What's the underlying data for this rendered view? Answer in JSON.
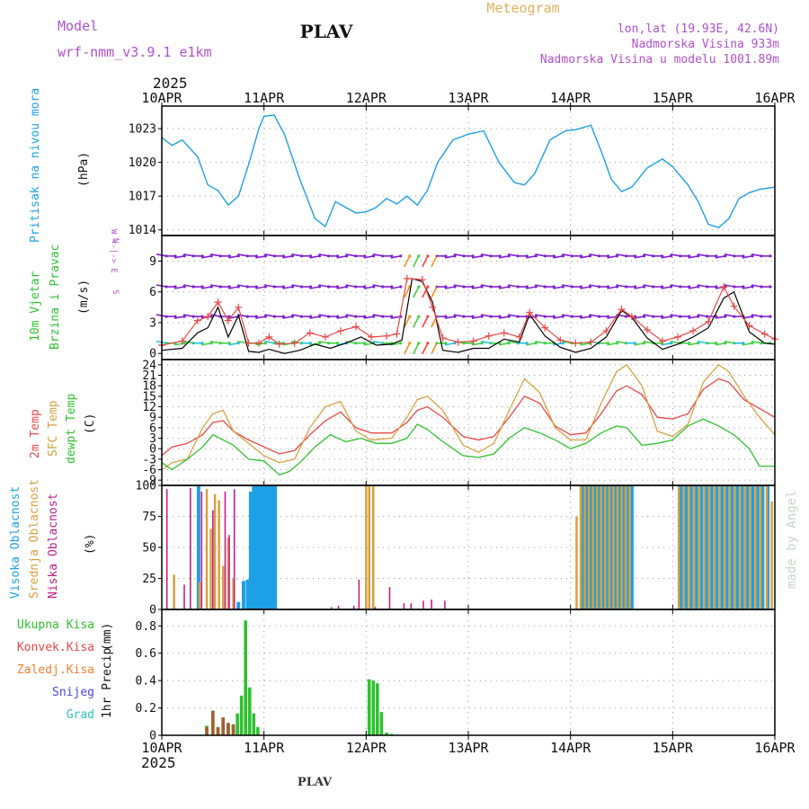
{
  "header": {
    "model_label": "Model",
    "model_name": "wrf-nmm_v3.9.1 e1km",
    "station": "PLAV",
    "product": "Meteogram",
    "coords": "lon,lat (19.93E, 42.6N)",
    "elevation": "Nadmorska Visina 933m",
    "model_elevation": "Nadmorska Visina u modelu 1001.89m",
    "year_top": "2025",
    "year_bottom": "2025",
    "footer_station": "PLAV",
    "watermark": "made by Angel"
  },
  "colors": {
    "pressure": "#1ea0e6",
    "temp2m": "#e84848",
    "sfc_temp": "#d8a040",
    "dewpt": "#30c030",
    "wind_speed": "#e84848",
    "wind_gust": "#000000",
    "cloud_high": "#1ea0e6",
    "cloud_mid": "#d8a040",
    "cloud_low": "#c0208a",
    "precip_total": "#30c030",
    "precip_conv": "#e84848",
    "precip_frz": "#f08030",
    "precip_snow": "#4848e0",
    "precip_graupel": "#30c0c0",
    "barb_purple": "#8020d0",
    "barb_green": "#40d040"
  },
  "chart_data": [
    {
      "type": "line",
      "id": "pressure",
      "ylabel": "Pritisak na nivou mora",
      "unit": "(hPa)",
      "xticks": [
        "10APR",
        "11APR",
        "12APR",
        "13APR",
        "14APR",
        "15APR",
        "16APR"
      ],
      "ylim": [
        1013.5,
        1025
      ],
      "yticks": [
        1014,
        1017,
        1020,
        1023
      ],
      "grid": true,
      "x": [
        0,
        0.1,
        0.2,
        0.35,
        0.45,
        0.55,
        0.65,
        0.75,
        0.85,
        0.95,
        1.0,
        1.1,
        1.2,
        1.35,
        1.5,
        1.6,
        1.7,
        1.8,
        1.9,
        2.0,
        2.1,
        2.2,
        2.3,
        2.4,
        2.5,
        2.6,
        2.7,
        2.85,
        3.0,
        3.15,
        3.3,
        3.45,
        3.55,
        3.65,
        3.8,
        3.95,
        4.05,
        4.2,
        4.3,
        4.4,
        4.5,
        4.6,
        4.75,
        4.9,
        5.0,
        5.15,
        5.25,
        5.35,
        5.45,
        5.55,
        5.65,
        5.75,
        5.85,
        6.0
      ],
      "y": [
        1022.2,
        1021.5,
        1022.0,
        1020.5,
        1018.0,
        1017.5,
        1016.2,
        1017.0,
        1019.8,
        1023.0,
        1024.1,
        1024.2,
        1022.5,
        1018.5,
        1015.0,
        1014.3,
        1016.5,
        1016.0,
        1015.5,
        1015.6,
        1016.0,
        1016.8,
        1016.3,
        1017.0,
        1016.2,
        1017.5,
        1020.0,
        1022.0,
        1022.5,
        1022.8,
        1020.0,
        1018.2,
        1018.0,
        1019.0,
        1022.0,
        1022.8,
        1022.9,
        1023.3,
        1021.0,
        1018.5,
        1017.4,
        1017.8,
        1019.5,
        1020.3,
        1019.6,
        1018.0,
        1016.5,
        1014.5,
        1014.2,
        1015.0,
        1016.8,
        1017.3,
        1017.6,
        1017.8
      ]
    },
    {
      "type": "line",
      "id": "wind",
      "ylabel": "10m Vjetar",
      "ylabel2": "Brzina i Pravac",
      "unit": "(m/s)",
      "legend_axis": [
        "N",
        "W <-|-> E",
        "S"
      ],
      "ylim": [
        -0.6,
        11.5
      ],
      "yticks": [
        0,
        3,
        6,
        9
      ],
      "grid": true,
      "series": [
        {
          "key": "speed",
          "x": [
            0,
            0.2,
            0.35,
            0.45,
            0.55,
            0.65,
            0.75,
            0.85,
            0.95,
            1.05,
            1.15,
            1.3,
            1.45,
            1.6,
            1.75,
            1.9,
            2.05,
            2.2,
            2.3,
            2.4,
            2.55,
            2.65,
            2.75,
            2.9,
            3.05,
            3.2,
            3.35,
            3.5,
            3.6,
            3.75,
            3.9,
            4.05,
            4.2,
            4.35,
            4.5,
            4.6,
            4.75,
            4.9,
            5.05,
            5.2,
            5.35,
            5.5,
            5.6,
            5.75,
            5.9,
            6.0
          ],
          "y": [
            0.8,
            1.2,
            3.2,
            3.6,
            5.0,
            3.2,
            4.5,
            1.0,
            1.0,
            1.6,
            0.9,
            1.0,
            2.0,
            1.6,
            2.2,
            2.6,
            1.6,
            1.7,
            1.9,
            7.3,
            7.2,
            4.5,
            1.5,
            1.1,
            1.2,
            1.7,
            2.0,
            1.6,
            4.0,
            2.5,
            1.3,
            1.0,
            1.1,
            2.2,
            4.3,
            3.6,
            2.3,
            1.2,
            1.6,
            2.2,
            3.1,
            6.5,
            4.6,
            2.7,
            1.9,
            1.4
          ]
        },
        {
          "key": "gust",
          "x": [
            0,
            0.2,
            0.35,
            0.45,
            0.55,
            0.65,
            0.75,
            0.85,
            0.95,
            1.05,
            1.2,
            1.35,
            1.5,
            1.65,
            1.8,
            1.95,
            2.1,
            2.25,
            2.35,
            2.45,
            2.55,
            2.65,
            2.75,
            2.9,
            3.05,
            3.2,
            3.35,
            3.5,
            3.6,
            3.75,
            3.9,
            4.05,
            4.2,
            4.35,
            4.5,
            4.6,
            4.75,
            4.9,
            5.05,
            5.2,
            5.35,
            5.5,
            5.6,
            5.75,
            5.9,
            6.0
          ],
          "y": [
            0.3,
            0.5,
            2.0,
            2.5,
            4.5,
            1.6,
            3.7,
            0.2,
            0.1,
            0.4,
            0.0,
            0.3,
            0.9,
            0.5,
            1.0,
            1.6,
            0.8,
            0.9,
            1.3,
            7.3,
            7.0,
            5.0,
            0.3,
            0.1,
            0.5,
            0.5,
            1.4,
            1.1,
            3.8,
            1.7,
            0.6,
            0.1,
            0.5,
            1.6,
            4.2,
            3.5,
            1.5,
            0.4,
            0.9,
            1.6,
            2.5,
            5.4,
            6.0,
            2.1,
            1.0,
            0.9
          ]
        }
      ]
    },
    {
      "type": "line",
      "id": "temperature",
      "ylabels": [
        "2m Temp",
        "SFC Temp",
        "dewpt Temp"
      ],
      "unit": "(C)",
      "ylim": [
        -10.5,
        25.5
      ],
      "yticks": [
        -9,
        -6,
        -3,
        0,
        3,
        6,
        9,
        12,
        15,
        18,
        21,
        24
      ],
      "grid": true,
      "series": [
        {
          "key": "temp2m",
          "x": [
            0,
            0.1,
            0.25,
            0.4,
            0.5,
            0.6,
            0.7,
            0.85,
            1.0,
            1.15,
            1.3,
            1.45,
            1.6,
            1.75,
            1.9,
            2.05,
            2.25,
            2.4,
            2.5,
            2.6,
            2.75,
            2.95,
            3.1,
            3.25,
            3.4,
            3.55,
            3.7,
            3.85,
            4.0,
            4.15,
            4.3,
            4.45,
            4.55,
            4.7,
            4.85,
            5.0,
            5.15,
            5.3,
            5.45,
            5.55,
            5.7,
            5.85,
            6.0
          ],
          "y": [
            -2,
            0.5,
            1.5,
            4,
            7.5,
            8,
            5,
            2.5,
            0.5,
            -1.5,
            -0.5,
            4,
            8,
            10.5,
            6,
            4.5,
            4.5,
            7.5,
            11,
            12,
            9,
            3.5,
            2.5,
            3.5,
            9,
            15,
            13,
            6.5,
            4,
            4.5,
            10,
            16.5,
            18,
            15.5,
            9,
            8.5,
            10,
            17,
            20,
            19,
            14,
            11.5,
            9
          ]
        },
        {
          "key": "sfc",
          "x": [
            0,
            0.1,
            0.25,
            0.4,
            0.5,
            0.6,
            0.7,
            0.85,
            1.0,
            1.15,
            1.3,
            1.45,
            1.6,
            1.75,
            1.9,
            2.05,
            2.25,
            2.4,
            2.5,
            2.6,
            2.75,
            2.95,
            3.1,
            3.25,
            3.4,
            3.55,
            3.7,
            3.85,
            4.0,
            4.15,
            4.3,
            4.45,
            4.55,
            4.7,
            4.85,
            5.0,
            5.15,
            5.3,
            5.45,
            5.55,
            5.7,
            5.85,
            6.0
          ],
          "y": [
            -6,
            -4,
            -3,
            6,
            10,
            11,
            5,
            1.5,
            -2,
            -4,
            -3,
            6,
            12,
            13.5,
            5,
            2.5,
            3,
            9,
            14,
            15,
            11,
            1,
            -1,
            1.5,
            11,
            20,
            16,
            6,
            2.5,
            2.5,
            13,
            22,
            24,
            18,
            5,
            3.5,
            7,
            19,
            24,
            22,
            15,
            9,
            4
          ]
        },
        {
          "key": "dewpt",
          "x": [
            0,
            0.1,
            0.25,
            0.4,
            0.5,
            0.6,
            0.7,
            0.85,
            1.0,
            1.15,
            1.25,
            1.35,
            1.5,
            1.65,
            1.8,
            1.95,
            2.1,
            2.25,
            2.4,
            2.5,
            2.6,
            2.75,
            2.95,
            3.1,
            3.25,
            3.4,
            3.55,
            3.7,
            3.85,
            4.0,
            4.15,
            4.3,
            4.45,
            4.55,
            4.7,
            4.85,
            5.0,
            5.15,
            5.3,
            5.45,
            5.6,
            5.75,
            5.85,
            6.0
          ],
          "y": [
            -4,
            -6,
            -3,
            0.5,
            4,
            2.5,
            1,
            -3,
            -3.5,
            -7.5,
            -6.5,
            -4,
            0.5,
            4,
            2,
            3,
            1.5,
            1.5,
            3,
            7,
            5.5,
            2,
            -2,
            -2.5,
            -1.5,
            3,
            6,
            4.5,
            2.5,
            0,
            1.5,
            4.5,
            6.5,
            6,
            1,
            1.5,
            2.5,
            6.5,
            8.5,
            6.5,
            4,
            0,
            -5,
            -5
          ]
        }
      ]
    },
    {
      "type": "bar",
      "id": "clouds",
      "ylabels": [
        "Visoka Oblacnost",
        "Srednja Oblacnost",
        "Niska Oblacnost"
      ],
      "unit": "(%)",
      "ylim": [
        0,
        100
      ],
      "yticks": [
        0,
        25,
        50,
        75,
        100
      ],
      "grid": true,
      "series": [
        {
          "key": "high",
          "x": [
            0.36,
            0.75,
            0.8,
            0.84,
            0.87,
            0.9,
            0.93,
            0.96,
            0.99,
            1.02,
            1.05,
            1.08,
            1.11,
            4.12,
            4.16,
            4.2,
            4.24,
            4.28,
            4.32,
            4.36,
            4.4,
            4.44,
            4.48,
            4.52,
            4.56,
            4.6,
            5.08,
            5.13,
            5.18,
            5.23,
            5.28,
            5.33,
            5.38,
            5.43,
            5.48,
            5.53,
            5.58,
            5.63,
            5.68,
            5.73,
            5.78,
            5.83,
            5.88,
            5.93
          ],
          "y": [
            100,
            6,
            23,
            24,
            95,
            100,
            100,
            100,
            100,
            100,
            100,
            100,
            100,
            100,
            100,
            100,
            100,
            100,
            100,
            100,
            100,
            100,
            100,
            100,
            100,
            100,
            100,
            100,
            100,
            100,
            100,
            100,
            100,
            100,
            100,
            100,
            100,
            100,
            100,
            100,
            100,
            100,
            100,
            100
          ]
        },
        {
          "key": "mid",
          "x": [
            0.12,
            0.37,
            0.44,
            0.48,
            0.52,
            0.56,
            0.6,
            0.65,
            0.7,
            2.0,
            2.03,
            2.07,
            4.06,
            4.1,
            4.14,
            4.18,
            4.22,
            4.26,
            4.3,
            4.34,
            4.38,
            4.42,
            4.46,
            4.5,
            4.54,
            4.58,
            5.06,
            5.11,
            5.16,
            5.21,
            5.26,
            5.31,
            5.36,
            5.41,
            5.46,
            5.51,
            5.56,
            5.61,
            5.66,
            5.71,
            5.76,
            5.81,
            5.86,
            5.92,
            5.97
          ],
          "y": [
            28,
            22,
            97,
            65,
            93,
            88,
            35,
            58,
            25,
            100,
            100,
            100,
            75,
            100,
            100,
            100,
            100,
            100,
            100,
            100,
            100,
            100,
            100,
            100,
            100,
            100,
            100,
            100,
            100,
            100,
            100,
            100,
            100,
            100,
            100,
            100,
            100,
            100,
            100,
            100,
            100,
            100,
            100,
            100,
            87
          ]
        },
        {
          "key": "low",
          "x": [
            0.05,
            0.22,
            0.28,
            0.39,
            0.5,
            0.62,
            0.66,
            0.71,
            1.66,
            1.73,
            1.88,
            1.93,
            2.09,
            2.23,
            2.37,
            2.44,
            2.56,
            2.64,
            2.77
          ],
          "y": [
            97,
            20,
            98,
            95,
            80,
            95,
            60,
            97,
            2,
            3,
            3,
            24,
            2,
            18,
            5,
            5,
            7,
            8,
            7
          ]
        }
      ]
    },
    {
      "type": "bar",
      "id": "precip",
      "ylabel": "1hr Precip",
      "unit": "(mm)",
      "legend": [
        "Ukupna Kisa",
        "Konvek.Kisa",
        "Zaledj.Kisa",
        "Snijeg",
        "Grad"
      ],
      "xticks": [
        "10APR",
        "11APR",
        "12APR",
        "13APR",
        "14APR",
        "15APR",
        "16APR"
      ],
      "ylim": [
        0,
        0.92
      ],
      "yticks": [
        0,
        0.2,
        0.4,
        0.6,
        0.8
      ],
      "grid": true,
      "series": [
        {
          "key": "total",
          "x": [
            0.44,
            0.5,
            0.55,
            0.6,
            0.65,
            0.7,
            0.74,
            0.78,
            0.82,
            0.86,
            0.9,
            0.94,
            2.03,
            2.07,
            2.11,
            2.15,
            2.2,
            2.25
          ],
          "y": [
            0.07,
            0.1,
            0.06,
            0.13,
            0.09,
            0.08,
            0.16,
            0.29,
            0.84,
            0.35,
            0.16,
            0.06,
            0.41,
            0.4,
            0.38,
            0.17,
            0.02,
            0.01
          ]
        },
        {
          "key": "conv",
          "x": [
            0.44,
            0.5,
            0.55,
            0.6,
            0.65,
            0.7
          ],
          "y": [
            0.06,
            0.18,
            0.06,
            0.13,
            0.09,
            0.08
          ]
        }
      ]
    }
  ]
}
